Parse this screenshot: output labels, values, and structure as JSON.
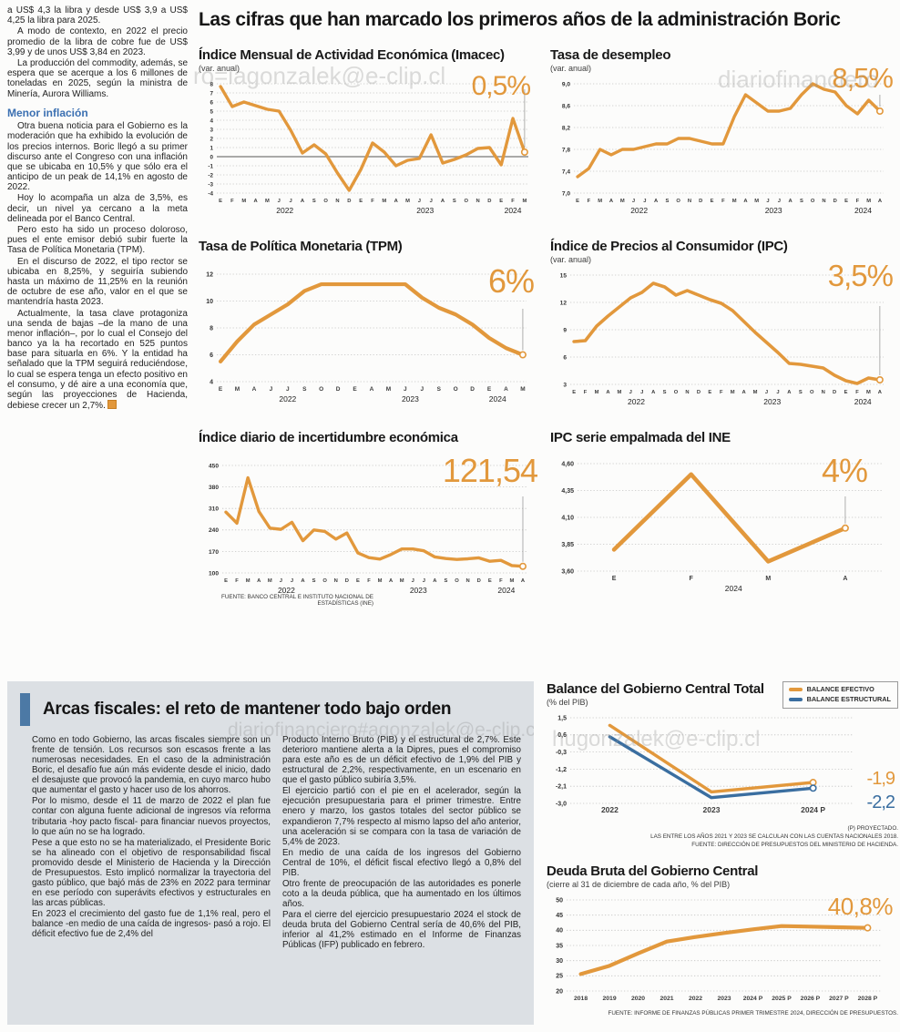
{
  "article": {
    "intro": [
      "a US$ 4,3 la libra y desde US$ 3,9 a US$ 4,25 la libra para 2025.",
      "A modo de contexto, en 2022 el precio promedio de la libra de cobre fue de US$ 3,99 y de unos US$ 3,84 en 2023.",
      "La producción del commodity, además, se espera que se acerque a los 6 millones de toneladas en 2025, según la ministra de Minería, Aurora Williams."
    ],
    "subhead": "Menor inflación",
    "body": [
      "Otra buena noticia para el Gobierno es la moderación que ha exhibido la evolución de los precios internos. Boric llegó a su primer discurso ante el Congreso con una inflación que se ubicaba en 10,5% y que sólo era el anticipo de un peak de 14,1% en agosto de 2022.",
      "Hoy lo acompaña un alza de 3,5%, es decir, un nivel ya cercano a la meta delineada por el Banco Central.",
      "Pero esto ha sido un proceso doloroso, pues el ente emisor debió subir fuerte la Tasa de Política Monetaria (TPM).",
      "En el discurso de 2022, el tipo rector se ubicaba en 8,25%, y seguiría subiendo hasta un máximo de 11,25% en la reunión de octubre de ese año, valor en el que se mantendría hasta 2023.",
      "Actualmente, la tasa clave protagoniza una senda de bajas –de la mano de una menor inflación–, por lo cual el Consejo del banco ya la ha recortado en 525 puntos base para situarla en 6%. Y la entidad ha señalado que la TPM seguirá reduciéndose, lo cual se espera tenga un efecto positivo en el consumo, y dé aire a una economía que, según las proyecciones de Hacienda, debiese crecer un 2,7%."
    ]
  },
  "main": {
    "title": "Las cifras que han marcado los primeros años de la administración Boric",
    "source": "FUENTE: BANCO CENTRAL E INSTITUTO NACIONAL DE ESTADÍSTICAS (INE)"
  },
  "fiscal": {
    "title": "Arcas fiscales: el reto de mantener todo bajo orden",
    "col1": [
      "Como en todo Gobierno, las arcas fiscales siempre son un frente de tensión. Los recursos son escasos frente a las numerosas necesidades. En el caso de la administración Boric, el desafío fue aún más evidente desde el inicio, dado el desajuste que provocó la pandemia, en cuyo marco hubo que aumentar el gasto y hacer uso de los ahorros.",
      "Por lo mismo, desde el 11 de marzo de 2022 el plan fue contar con alguna fuente adicional de ingresos vía reforma tributaria -hoy pacto fiscal- para financiar nuevos proyectos, lo que aún no se ha logrado.",
      "Pese a que esto no se ha materializado, el Presidente Boric se ha alineado con el objetivo de responsabilidad fiscal promovido desde el Ministerio de Hacienda y la Dirección de Presupuestos. Esto implicó normalizar la trayectoria del gasto público, que bajó más de 23% en 2022 para terminar en ese período con superávits efectivos y estructurales en las arcas públicas.",
      "En 2023 el crecimiento del gasto fue de 1,1% real, pero el balance -en medio de una caída de ingresos- pasó a rojo. El déficit efectivo fue de 2,4% del"
    ],
    "col2": [
      "Producto Interno Bruto (PIB) y el estructural de 2,7%. Este deterioro mantiene alerta a la Dipres, pues el compromiso para este año es de un déficit efectivo de 1,9% del PIB y estructural de 2,2%, respectivamente, en un escenario en que el gasto público subiría 3,5%.",
      "El ejercicio partió con el pie en el acelerador, según la ejecución presupuestaria para el primer trimestre. Entre enero y marzo, los gastos totales del sector público se expandieron 7,7% respecto al mismo lapso del año anterior, una aceleración si se compara con la tasa de variación de 5,4% de 2023.",
      "En medio de una caída de los ingresos del Gobierno Central de 10%, el déficit fiscal efectivo llegó a 0,8% del PIB.",
      "Otro frente de preocupación de las autoridades es ponerle coto a la deuda pública, que ha aumentado en los últimos años.",
      "Para el cierre del ejercicio presupuestario 2024 el stock de deuda bruta del Gobierno Central sería de 40,6% del PIB, inferior al 41,2% estimado en el Informe de Finanzas Públicas (IFP) publicado en febrero."
    ]
  },
  "watermarks": [
    "ro=iagonzalek@e-clip.cl",
    "diariofinanciero",
    "diariofinanciero#agonzalek@e-clip.cl",
    "hugonzalek@e-clip.cl"
  ],
  "chart_data": [
    {
      "id": "imacec",
      "type": "line",
      "title": "Índice Mensual de Actividad Económica (Imacec)",
      "subtitle": "(var. anual)",
      "annotation": "0,5%",
      "x_labels": [
        "E",
        "F",
        "M",
        "A",
        "M",
        "J",
        "J",
        "A",
        "S",
        "O",
        "N",
        "D",
        "E",
        "F",
        "M",
        "A",
        "M",
        "J",
        "J",
        "A",
        "S",
        "O",
        "N",
        "D",
        "E",
        "F",
        "M"
      ],
      "values": [
        7.7,
        5.5,
        6.0,
        5.6,
        5.2,
        5.0,
        2.9,
        0.4,
        1.3,
        0.3,
        -1.8,
        -3.7,
        -1.4,
        1.5,
        0.5,
        -1.0,
        -0.4,
        -0.2,
        2.4,
        -0.7,
        -0.3,
        0.2,
        0.9,
        1.0,
        -0.9,
        4.2,
        0.5
      ],
      "y_ticks": [
        {
          "v": 8,
          "t": "8"
        },
        {
          "v": 7,
          "t": "7"
        },
        {
          "v": 6,
          "t": "6"
        },
        {
          "v": 5,
          "t": "5"
        },
        {
          "v": 4,
          "t": "4"
        },
        {
          "v": 3,
          "t": "3"
        },
        {
          "v": 2,
          "t": "2"
        },
        {
          "v": 1,
          "t": "1"
        },
        {
          "v": 0,
          "t": "0"
        },
        {
          "v": -1,
          "t": "-1"
        },
        {
          "v": -2,
          "t": "-2"
        },
        {
          "v": -3,
          "t": "-3"
        },
        {
          "v": -4,
          "t": "-4"
        }
      ],
      "y_min": -4,
      "y_max": 8,
      "zero_line": true,
      "years": [
        {
          "label": "2022",
          "i": 5.5
        },
        {
          "label": "2023",
          "i": 17.5
        },
        {
          "label": "2024",
          "i": 25
        }
      ]
    },
    {
      "id": "desempleo",
      "type": "line",
      "title": "Tasa de desempleo",
      "subtitle": "(var. anual)",
      "annotation": "8,5%",
      "x_labels": [
        "E",
        "F",
        "M",
        "A",
        "M",
        "J",
        "J",
        "A",
        "S",
        "O",
        "N",
        "D",
        "E",
        "F",
        "M",
        "A",
        "M",
        "J",
        "J",
        "A",
        "S",
        "O",
        "N",
        "D",
        "E",
        "F",
        "M",
        "A"
      ],
      "values": [
        7.3,
        7.45,
        7.8,
        7.7,
        7.8,
        7.8,
        7.85,
        7.9,
        7.9,
        8.0,
        8.0,
        7.95,
        7.9,
        7.9,
        8.4,
        8.8,
        8.65,
        8.5,
        8.5,
        8.55,
        8.8,
        9.0,
        8.9,
        8.85,
        8.6,
        8.45,
        8.7,
        8.5
      ],
      "y_ticks": [
        {
          "v": 9.0,
          "t": "9,0"
        },
        {
          "v": 8.6,
          "t": "8,6"
        },
        {
          "v": 8.2,
          "t": "8,2"
        },
        {
          "v": 7.8,
          "t": "7,8"
        },
        {
          "v": 7.4,
          "t": "7,4"
        },
        {
          "v": 7.0,
          "t": "7,0"
        }
      ],
      "y_min": 7.0,
      "y_max": 9.0,
      "years": [
        {
          "label": "2022",
          "i": 5.5
        },
        {
          "label": "2023",
          "i": 17.5
        },
        {
          "label": "2024",
          "i": 25.5
        }
      ]
    },
    {
      "id": "tpm",
      "type": "line",
      "title": "Tasa de Política Monetaria (TPM)",
      "subtitle": "",
      "annotation": "6%",
      "x_labels": [
        "E",
        "M",
        "A",
        "J",
        "J",
        "S",
        "O",
        "D",
        "E",
        "A",
        "M",
        "J",
        "J",
        "S",
        "O",
        "D",
        "E",
        "A",
        "M"
      ],
      "values": [
        5.5,
        7.0,
        8.25,
        9.0,
        9.75,
        10.75,
        11.25,
        11.25,
        11.25,
        11.25,
        11.25,
        11.25,
        10.25,
        9.5,
        9.0,
        8.25,
        7.25,
        6.5,
        6.0
      ],
      "y_ticks": [
        {
          "v": 12,
          "t": "12"
        },
        {
          "v": 10,
          "t": "10"
        },
        {
          "v": 8,
          "t": "8"
        },
        {
          "v": 6,
          "t": "6"
        },
        {
          "v": 4,
          "t": "4"
        }
      ],
      "y_min": 4,
      "y_max": 12,
      "years": [
        {
          "label": "2022",
          "i": 4
        },
        {
          "label": "2023",
          "i": 11.3
        },
        {
          "label": "2024",
          "i": 16.5
        }
      ]
    },
    {
      "id": "ipc",
      "type": "line",
      "title": "Índice de Precios al Consumidor (IPC)",
      "subtitle": "(var. anual)",
      "annotation": "3,5%",
      "x_labels": [
        "E",
        "F",
        "M",
        "A",
        "M",
        "J",
        "J",
        "A",
        "S",
        "O",
        "N",
        "D",
        "E",
        "F",
        "M",
        "A",
        "M",
        "J",
        "J",
        "A",
        "S",
        "O",
        "N",
        "D",
        "E",
        "F",
        "M",
        "A"
      ],
      "values": [
        7.7,
        7.8,
        9.4,
        10.5,
        11.5,
        12.5,
        13.1,
        14.1,
        13.7,
        12.8,
        13.3,
        12.8,
        12.3,
        11.9,
        11.1,
        9.9,
        8.7,
        7.6,
        6.5,
        5.3,
        5.2,
        5.0,
        4.8,
        4.0,
        3.4,
        3.1,
        3.7,
        3.5
      ],
      "y_ticks": [
        {
          "v": 15,
          "t": "15"
        },
        {
          "v": 12,
          "t": "12"
        },
        {
          "v": 9,
          "t": "9"
        },
        {
          "v": 6,
          "t": "6"
        },
        {
          "v": 3,
          "t": "3"
        }
      ],
      "y_min": 3,
      "y_max": 15,
      "years": [
        {
          "label": "2022",
          "i": 5.5
        },
        {
          "label": "2023",
          "i": 17.5
        },
        {
          "label": "2024",
          "i": 25.5
        }
      ]
    },
    {
      "id": "incertidumbre",
      "type": "line",
      "title": "Índice diario de incertidumbre económica",
      "subtitle": "",
      "annotation": "121,54",
      "x_labels": [
        "E",
        "F",
        "M",
        "A",
        "M",
        "J",
        "J",
        "A",
        "S",
        "O",
        "N",
        "D",
        "E",
        "F",
        "M",
        "A",
        "M",
        "J",
        "J",
        "A",
        "S",
        "O",
        "N",
        "D",
        "E",
        "F",
        "M",
        "A"
      ],
      "values": [
        298,
        262,
        410,
        300,
        246,
        242,
        265,
        205,
        240,
        235,
        210,
        230,
        165,
        150,
        145,
        160,
        178,
        178,
        172,
        152,
        147,
        144,
        146,
        149,
        138,
        141,
        124,
        121.54
      ],
      "y_ticks": [
        {
          "v": 450,
          "t": "450"
        },
        {
          "v": 380,
          "t": "380"
        },
        {
          "v": 310,
          "t": "310"
        },
        {
          "v": 240,
          "t": "240"
        },
        {
          "v": 170,
          "t": "170"
        },
        {
          "v": 100,
          "t": "100"
        }
      ],
      "y_min": 100,
      "y_max": 450,
      "years": [
        {
          "label": "2022",
          "i": 5.5
        },
        {
          "label": "2023",
          "i": 17.5
        },
        {
          "label": "2024",
          "i": 25.5
        }
      ]
    },
    {
      "id": "empalmada",
      "type": "line",
      "title": "IPC serie empalmada del INE",
      "subtitle": "",
      "annotation": "4%",
      "x_labels": [
        "E",
        "F",
        "M",
        "A"
      ],
      "values": [
        3.8,
        4.5,
        3.69,
        4.0
      ],
      "y_ticks": [
        {
          "v": 4.6,
          "t": "4,60"
        },
        {
          "v": 4.35,
          "t": "4,35"
        },
        {
          "v": 4.1,
          "t": "4,10"
        },
        {
          "v": 3.85,
          "t": "3,85"
        },
        {
          "v": 3.6,
          "t": "3,60"
        }
      ],
      "y_min": 3.6,
      "y_max": 4.6,
      "years": [
        {
          "label": "2024",
          "i": 1.55
        }
      ]
    },
    {
      "id": "balance",
      "type": "line",
      "title": "Balance del Gobierno Central Total",
      "subtitle": "(% del PIB)",
      "legend": [
        {
          "label": "BALANCE EFECTIVO",
          "color": "#e2983c"
        },
        {
          "label": "BALANCE ESTRUCTURAL",
          "color": "#3a6ea0"
        }
      ],
      "x_labels": [
        "2022",
        "2023",
        "2024 P"
      ],
      "series": [
        {
          "name": "BALANCE EFECTIVO",
          "color": "#e2983c",
          "values": [
            1.1,
            -2.4,
            -1.9
          ]
        },
        {
          "name": "BALANCE ESTRUCTURAL",
          "color": "#3a6ea0",
          "values": [
            0.5,
            -2.7,
            -2.2
          ]
        }
      ],
      "annotations": [
        "-1,9",
        "-2,2"
      ],
      "y_ticks": [
        {
          "v": 1.5,
          "t": "1,5"
        },
        {
          "v": 0.6,
          "t": "0,6"
        },
        {
          "v": -0.3,
          "t": "-0,3"
        },
        {
          "v": -1.2,
          "t": "-1,2"
        },
        {
          "v": -2.1,
          "t": "-2,1"
        },
        {
          "v": -3.0,
          "t": "-3,0"
        }
      ],
      "y_min": -3.0,
      "y_max": 1.5,
      "footnotes": [
        "(P) PROYECTADO.",
        "LAS ENTRE LOS AÑOS 2021 Y 2023 SE CALCULAN CON LAS CUENTAS NACIONALES 2018.",
        "FUENTE: DIRECCIÓN DE PRESUPUESTOS DEL MINISTERIO DE HACIENDA."
      ]
    },
    {
      "id": "deuda",
      "type": "line",
      "title": "Deuda Bruta del Gobierno Central",
      "subtitle": "(cierre al 31 de diciembre de cada año, % del PIB)",
      "annotation": "40,8%",
      "x_labels": [
        "2018",
        "2019",
        "2020",
        "2021",
        "2022",
        "2023",
        "2024 P",
        "2025 P",
        "2026 P",
        "2027 P",
        "2028 P"
      ],
      "values": [
        25.6,
        28.3,
        32.4,
        36.3,
        37.8,
        39.1,
        40.3,
        41.4,
        41.2,
        41.0,
        40.8
      ],
      "y_ticks": [
        {
          "v": 50,
          "t": "50"
        },
        {
          "v": 45,
          "t": "45"
        },
        {
          "v": 40,
          "t": "40"
        },
        {
          "v": 35,
          "t": "35"
        },
        {
          "v": 30,
          "t": "30"
        },
        {
          "v": 25,
          "t": "25"
        },
        {
          "v": 20,
          "t": "20"
        }
      ],
      "y_min": 20,
      "y_max": 50,
      "source": "FUENTE: INFORME DE FINANZAS PÚBLICAS PRIMER TRIMESTRE 2024, DIRECCIÓN DE PRESUPUESTOS."
    }
  ]
}
